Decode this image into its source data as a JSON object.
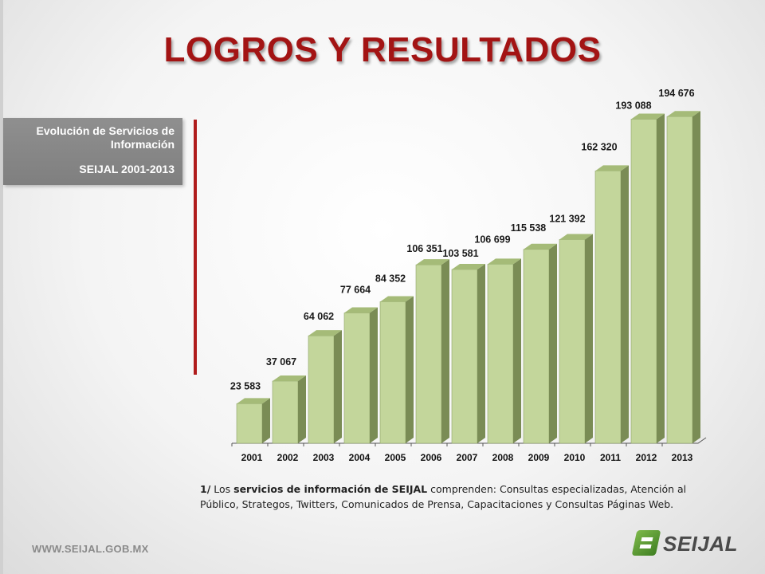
{
  "title": "LOGROS Y RESULTADOS",
  "sidebox": {
    "line1": "Evolución de Servicios de Información",
    "line2": "SEIJAL 2001-2013"
  },
  "footnote": {
    "prefix": "1/",
    "lead": "Los",
    "bold": "servicios de información de SEIJAL",
    "rest": "comprenden: Consultas especializadas, Atención al Público,  Strategos, Twitters, Comunicados de Prensa, Capacitaciones y Consultas Páginas Web."
  },
  "footer": {
    "url": "WWW.SEIJAL.GOB.MX",
    "logo_text": "SEIJAL"
  },
  "colors": {
    "title": "#a31414",
    "bar_front": "#c3d69b",
    "bar_side": "#7a8c55",
    "bar_top": "#a5bb78",
    "accent_line": "#b01c1c"
  },
  "chart_data": {
    "type": "bar",
    "style": "3d-column",
    "categories": [
      "2001",
      "2002",
      "2003",
      "2004",
      "2005",
      "2006",
      "2007",
      "2008",
      "2009",
      "2010",
      "2011",
      "2012",
      "2013"
    ],
    "values": [
      23583,
      37067,
      64062,
      77664,
      84352,
      106351,
      103581,
      106699,
      115538,
      121392,
      162320,
      193088,
      194676
    ],
    "labels": [
      "23 583",
      "37 067",
      "64 062",
      "77 664",
      "84 352",
      "106 351",
      "103 581",
      "106 699",
      "115 538",
      "121 392",
      "162 320",
      "193 088",
      "194 676"
    ],
    "ylim": [
      0,
      200000
    ],
    "grid": false,
    "legend": "none"
  }
}
